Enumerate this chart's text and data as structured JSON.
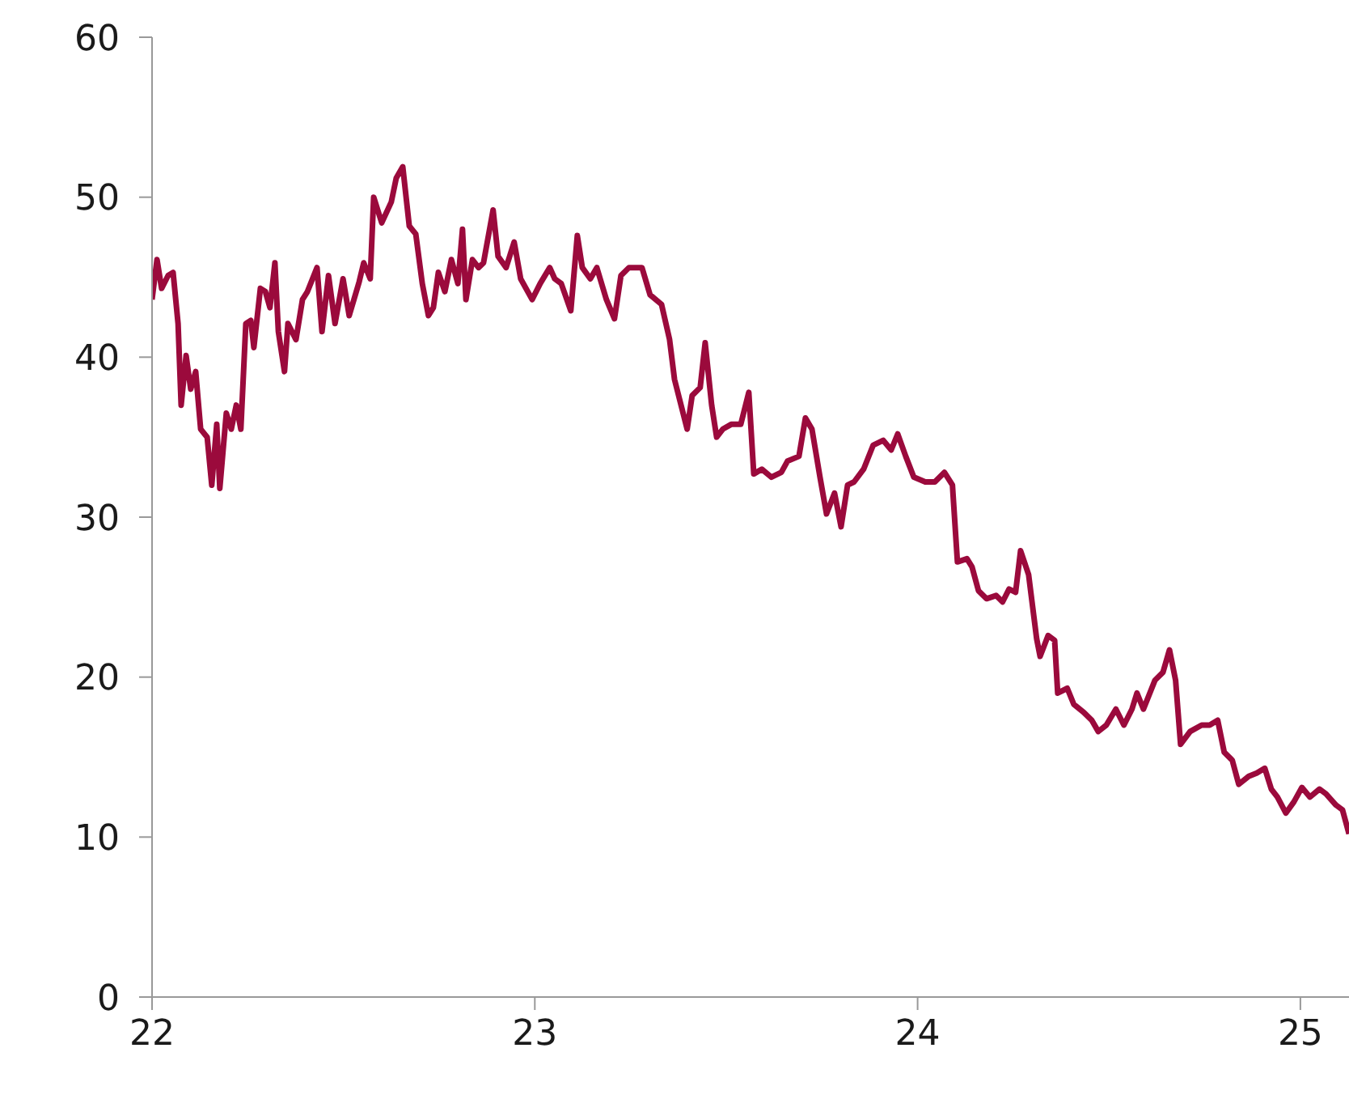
{
  "chart_data": {
    "type": "line",
    "xlim": [
      22,
      25.127
    ],
    "xticks": [
      22,
      23,
      24,
      25
    ],
    "ylim": [
      0,
      60
    ],
    "yticks": [
      0,
      10,
      20,
      30,
      40,
      50,
      60
    ],
    "grid": false,
    "legend": false,
    "marker": "none",
    "line_style": "solid",
    "x": [
      22.0,
      22.013,
      22.025,
      22.042,
      22.055,
      22.068,
      22.076,
      22.089,
      22.101,
      22.114,
      22.127,
      22.144,
      22.156,
      22.169,
      22.177,
      22.194,
      22.207,
      22.22,
      22.232,
      22.245,
      22.258,
      22.266,
      22.283,
      22.296,
      22.308,
      22.321,
      22.33,
      22.346,
      22.355,
      22.376,
      22.393,
      22.406,
      22.431,
      22.444,
      22.461,
      22.478,
      22.499,
      22.515,
      22.541,
      22.553,
      22.57,
      22.579,
      22.6,
      22.625,
      22.638,
      22.655,
      22.672,
      22.689,
      22.706,
      22.722,
      22.735,
      22.748,
      22.765,
      22.782,
      22.799,
      22.811,
      22.82,
      22.837,
      22.853,
      22.866,
      22.891,
      22.904,
      22.925,
      22.946,
      22.963,
      22.993,
      23.014,
      23.039,
      23.052,
      23.069,
      23.094,
      23.111,
      23.124,
      23.145,
      23.162,
      23.187,
      23.208,
      23.225,
      23.246,
      23.28,
      23.301,
      23.331,
      23.352,
      23.365,
      23.382,
      23.398,
      23.411,
      23.432,
      23.445,
      23.462,
      23.475,
      23.491,
      23.513,
      23.538,
      23.559,
      23.572,
      23.593,
      23.618,
      23.644,
      23.66,
      23.69,
      23.707,
      23.724,
      23.745,
      23.762,
      23.783,
      23.8,
      23.817,
      23.834,
      23.859,
      23.884,
      23.91,
      23.931,
      23.948,
      23.969,
      23.99,
      24.02,
      24.045,
      24.07,
      24.091,
      24.104,
      24.129,
      24.142,
      24.159,
      24.18,
      24.205,
      24.222,
      24.239,
      24.256,
      24.269,
      24.29,
      24.311,
      24.32,
      24.341,
      24.358,
      24.366,
      24.391,
      24.408,
      24.434,
      24.455,
      24.472,
      24.493,
      24.518,
      24.539,
      24.56,
      24.573,
      24.59,
      24.62,
      24.641,
      24.658,
      24.674,
      24.687,
      24.712,
      24.742,
      24.763,
      24.784,
      24.801,
      24.822,
      24.839,
      24.865,
      24.886,
      24.907,
      24.924,
      24.94,
      24.962,
      24.983,
      25.004,
      25.025,
      25.05,
      25.067,
      25.093,
      25.11,
      25.127
    ],
    "series": [
      {
        "color": "#9b0a3c",
        "values": [
          43.6,
          46.1,
          44.3,
          45.1,
          45.3,
          42.1,
          37.0,
          40.1,
          38.0,
          39.1,
          35.5,
          35.0,
          32.0,
          35.8,
          31.8,
          36.5,
          35.5,
          37.0,
          35.5,
          42.1,
          42.3,
          40.6,
          44.3,
          44.1,
          43.1,
          45.9,
          41.6,
          39.1,
          42.1,
          41.1,
          43.6,
          44.1,
          45.6,
          41.6,
          45.1,
          42.1,
          44.9,
          42.6,
          44.7,
          45.9,
          44.9,
          50.0,
          48.4,
          49.7,
          51.2,
          51.9,
          48.2,
          47.7,
          44.6,
          42.6,
          43.1,
          45.3,
          44.1,
          46.1,
          44.6,
          48.0,
          43.6,
          46.1,
          45.6,
          45.9,
          49.2,
          46.3,
          45.6,
          47.2,
          44.9,
          43.6,
          44.6,
          45.6,
          44.9,
          44.6,
          42.9,
          47.6,
          45.6,
          44.9,
          45.6,
          43.6,
          42.4,
          45.1,
          45.6,
          45.6,
          43.9,
          43.3,
          41.1,
          38.6,
          37.0,
          35.5,
          37.6,
          38.1,
          40.9,
          37.0,
          35.0,
          35.5,
          35.8,
          35.8,
          37.8,
          32.7,
          33.0,
          32.5,
          32.8,
          33.5,
          33.8,
          36.2,
          35.5,
          32.5,
          30.2,
          31.5,
          29.4,
          32.0,
          32.2,
          33.0,
          34.5,
          34.8,
          34.2,
          35.2,
          33.8,
          32.5,
          32.2,
          32.2,
          32.8,
          32.0,
          27.2,
          27.4,
          26.9,
          25.4,
          24.9,
          25.1,
          24.7,
          25.5,
          25.3,
          27.9,
          26.4,
          22.4,
          21.3,
          22.6,
          22.3,
          19.0,
          19.3,
          18.3,
          17.8,
          17.3,
          16.6,
          17.0,
          18.0,
          17.0,
          18.0,
          19.0,
          18.0,
          19.8,
          20.3,
          21.7,
          19.8,
          15.8,
          16.6,
          17.0,
          17.0,
          17.3,
          15.3,
          14.8,
          13.3,
          13.8,
          14.0,
          14.3,
          13.0,
          12.5,
          11.5,
          12.2,
          13.1,
          12.5,
          13.0,
          12.7,
          12.0,
          11.7,
          10.2
        ]
      }
    ]
  }
}
